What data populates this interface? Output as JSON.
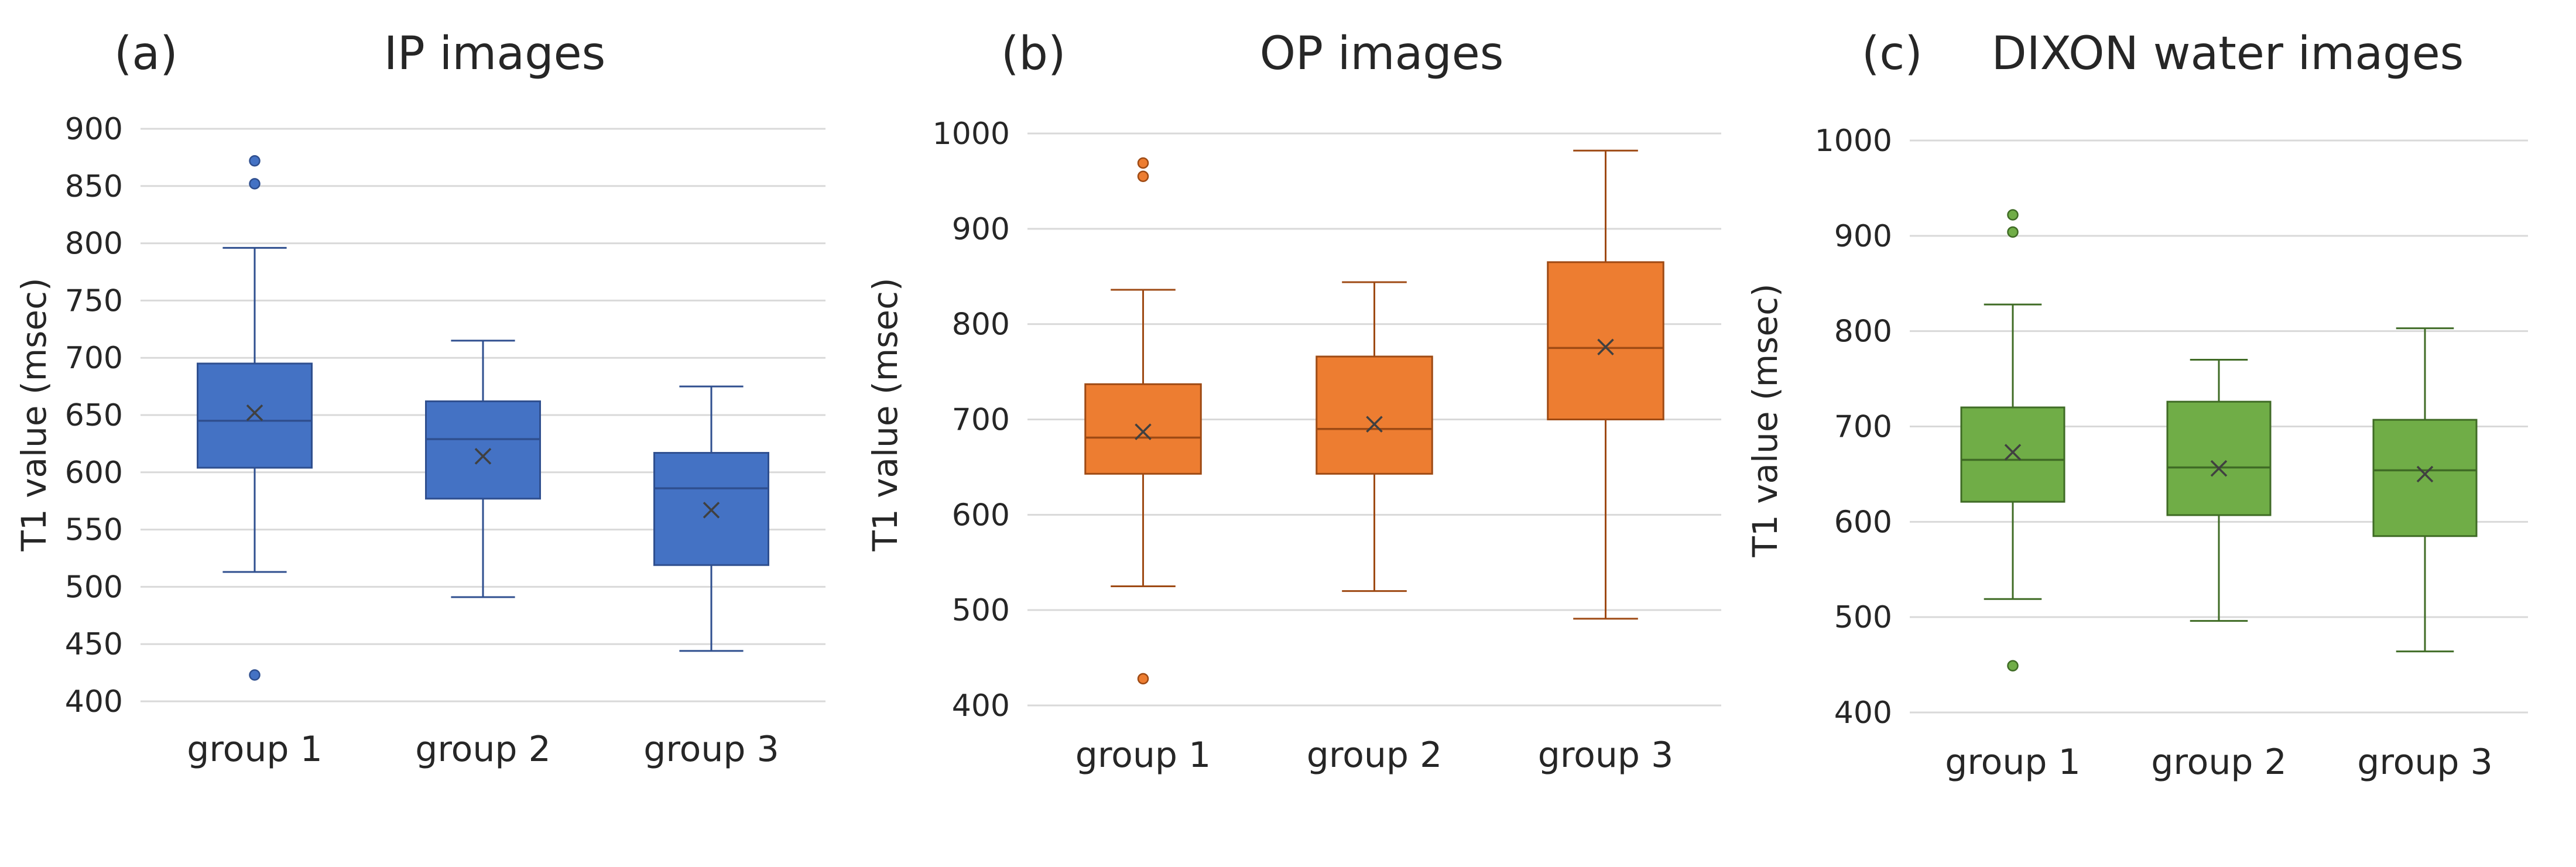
{
  "chart_data": [
    {
      "type": "box",
      "panel_label": "(a)",
      "title": "IP images",
      "ylabel": "T1 value (msec)",
      "ylim": [
        400,
        900
      ],
      "yticks": [
        400,
        450,
        500,
        550,
        600,
        650,
        700,
        750,
        800,
        850,
        900
      ],
      "categories": [
        "group 1",
        "group 2",
        "group 3"
      ],
      "colors": {
        "fill": "#4472C4",
        "line": "#2F4F8F"
      },
      "grid": true,
      "boxes": [
        {
          "category": "group 1",
          "whisker_low": 513,
          "q1": 604,
          "median": 645,
          "q3": 695,
          "whisker_high": 796,
          "mean": 652,
          "outliers": [
            423,
            852,
            872
          ]
        },
        {
          "category": "group 2",
          "whisker_low": 491,
          "q1": 577,
          "median": 629,
          "q3": 662,
          "whisker_high": 715,
          "mean": 614,
          "outliers": []
        },
        {
          "category": "group 3",
          "whisker_low": 444,
          "q1": 519,
          "median": 586,
          "q3": 617,
          "whisker_high": 675,
          "mean": 567,
          "outliers": []
        }
      ]
    },
    {
      "type": "box",
      "panel_label": "(b)",
      "title": "OP images",
      "ylabel": "T1 value (msec)",
      "ylim": [
        400,
        1000
      ],
      "yticks": [
        400,
        500,
        600,
        700,
        800,
        900,
        1000
      ],
      "categories": [
        "group 1",
        "group 2",
        "group 3"
      ],
      "colors": {
        "fill": "#ED7D31",
        "line": "#9E4A14"
      },
      "grid": true,
      "boxes": [
        {
          "category": "group 1",
          "whisker_low": 525,
          "q1": 643,
          "median": 681,
          "q3": 737,
          "whisker_high": 836,
          "mean": 687,
          "outliers": [
            428,
            955,
            969
          ]
        },
        {
          "category": "group 2",
          "whisker_low": 520,
          "q1": 643,
          "median": 690,
          "q3": 766,
          "whisker_high": 844,
          "mean": 695,
          "outliers": []
        },
        {
          "category": "group 3",
          "whisker_low": 491,
          "q1": 700,
          "median": 775,
          "q3": 865,
          "whisker_high": 982,
          "mean": 776,
          "outliers": []
        }
      ]
    },
    {
      "type": "box",
      "panel_label": "(c)",
      "title": "DIXON water images",
      "ylabel": "T1 value (msec)",
      "ylim": [
        400,
        1000
      ],
      "yticks": [
        400,
        500,
        600,
        700,
        800,
        900,
        1000
      ],
      "categories": [
        "group 1",
        "group 2",
        "group 3"
      ],
      "colors": {
        "fill": "#70AD47",
        "line": "#3F6B25"
      },
      "grid": true,
      "boxes": [
        {
          "category": "group 1",
          "whisker_low": 519,
          "q1": 621,
          "median": 665,
          "q3": 720,
          "whisker_high": 828,
          "mean": 673,
          "outliers": [
            449,
            904,
            922
          ]
        },
        {
          "category": "group 2",
          "whisker_low": 496,
          "q1": 607,
          "median": 657,
          "q3": 726,
          "whisker_high": 770,
          "mean": 656,
          "outliers": []
        },
        {
          "category": "group 3",
          "whisker_low": 464,
          "q1": 585,
          "median": 654,
          "q3": 707,
          "whisker_high": 803,
          "mean": 650,
          "outliers": []
        }
      ]
    }
  ]
}
